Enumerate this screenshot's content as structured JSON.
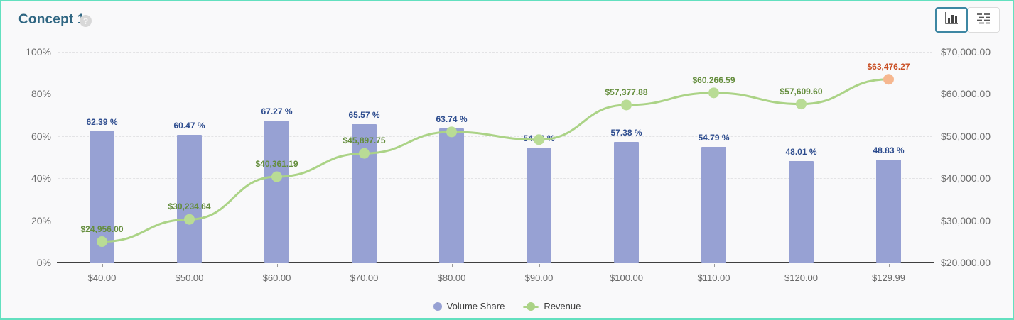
{
  "header": {
    "title": "Concept 1",
    "help_icon": "?",
    "view_toggle": {
      "active_view": "chart",
      "chart_button": "bar-chart-view",
      "table_button": "table-view"
    }
  },
  "colors": {
    "card_border_accent": "#63e0bf",
    "background": "#f9f9fa",
    "title_text": "#2f6682",
    "active_button_border": "#3e87a3",
    "bar_fill": "#97a1d3",
    "bar_label_text": "#2d4c8e",
    "line_stroke": "#abd386",
    "marker_fill": "#b9dc95",
    "marker_highlight_fill": "#f6b78f",
    "revenue_label_text": "#648d3c",
    "revenue_label_highlight_text": "#c94e23",
    "axis_text": "#6a6a6a",
    "gridline": "#e3e3e5"
  },
  "chart_data": {
    "type": "bar",
    "subtype": "bar-and-line-combo",
    "categories": [
      "$40.00",
      "$50.00",
      "$60.00",
      "$70.00",
      "$80.00",
      "$90.00",
      "$100.00",
      "$110.00",
      "$120.00",
      "$129.99"
    ],
    "series": [
      {
        "name": "Volume Share",
        "type": "bar",
        "axis": "left",
        "values": [
          62.39,
          60.47,
          67.27,
          65.57,
          63.74,
          54.62,
          57.38,
          54.79,
          48.01,
          48.83
        ],
        "labels": [
          "62.39 %",
          "60.47 %",
          "67.27 %",
          "65.57 %",
          "63.74 %",
          "54.62 %",
          "57.38 %",
          "54.79 %",
          "48.01 %",
          "48.83 %"
        ]
      },
      {
        "name": "Revenue",
        "type": "line",
        "axis": "right",
        "values": [
          24956.0,
          30234.64,
          40361.19,
          45897.75,
          50992,
          49158,
          57377.88,
          60266.59,
          57609.6,
          63476.27
        ],
        "labels": [
          "$24,956.00",
          "$30,234.64",
          "$40,361.19",
          "$45,897.75",
          "",
          "",
          "$57,377.88",
          "$60,266.59",
          "$57,609.60",
          "$63,476.27"
        ],
        "highlight_index": 9
      }
    ],
    "left_axis": {
      "label": "",
      "ticks": [
        "0%",
        "20%",
        "40%",
        "60%",
        "80%",
        "100%"
      ],
      "tick_values": [
        0,
        20,
        40,
        60,
        80,
        100
      ],
      "range": [
        0,
        100
      ]
    },
    "right_axis": {
      "label": "",
      "ticks": [
        "$20,000.00",
        "$30,000.00",
        "$40,000.00",
        "$50,000.00",
        "$60,000.00",
        "$70,000.00"
      ],
      "tick_values": [
        20000,
        30000,
        40000,
        50000,
        60000,
        70000
      ],
      "range": [
        20000,
        70000
      ]
    },
    "grid": "horizontal-dashed",
    "legend_position": "bottom-center",
    "legend": [
      {
        "label": "Volume Share",
        "marker": "circle",
        "color": "#97a1d3"
      },
      {
        "label": "Revenue",
        "marker": "circle-on-line",
        "color": "#abd386"
      }
    ]
  }
}
